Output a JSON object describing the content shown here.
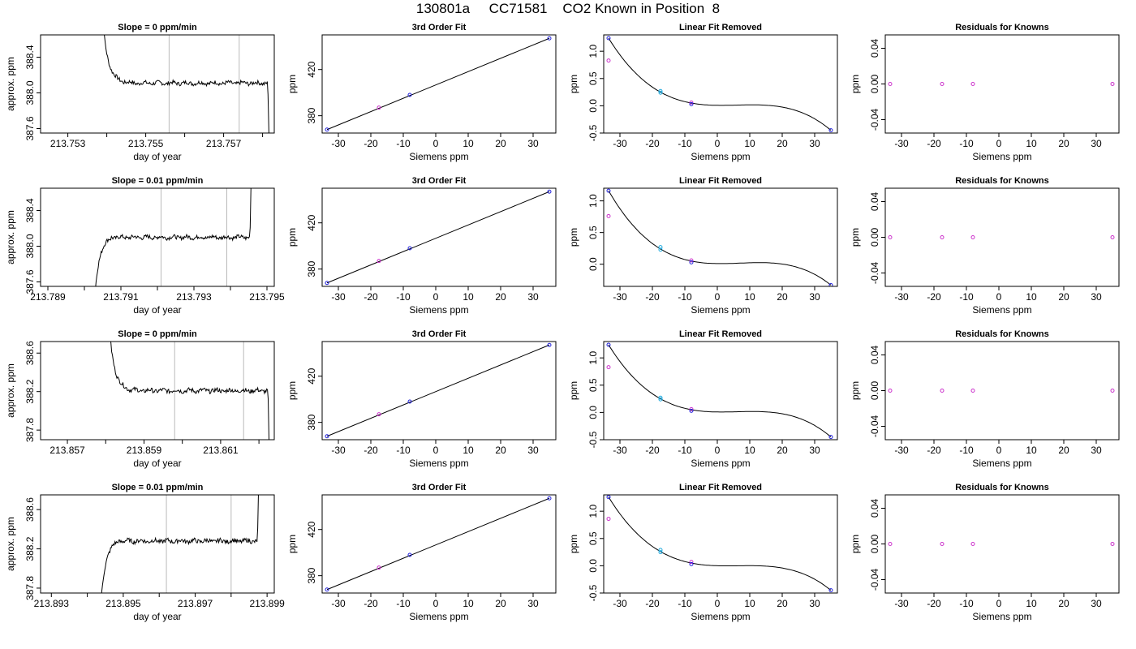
{
  "figure": {
    "title": "130801a     CC71581    CO2 Known in Position  8"
  },
  "colors": {
    "line": "#000000",
    "marker_blue": "#2222dd",
    "marker_cyan": "#22aadd",
    "marker_magenta": "#cc33cc",
    "vline": "#bbbbbb"
  },
  "chart_data": [
    {
      "type": "line",
      "row": 1,
      "title": "Slope =  0  ppm/min",
      "xlabel": "day of year",
      "ylabel": "approx. ppm",
      "xlim": [
        213.7523,
        213.7583
      ],
      "ylim": [
        387.55,
        388.65
      ],
      "xticks": [
        213.753,
        213.755,
        213.757
      ],
      "xtick_labels": [
        "213.753",
        "213.755",
        "213.757"
      ],
      "minor_xticks": [
        213.754,
        213.756,
        213.758
      ],
      "yticks": [
        387.6,
        388.0,
        388.4
      ],
      "ytick_labels": [
        "387.6",
        "388.0",
        "388.4"
      ],
      "vlines": [
        213.7556,
        213.7574
      ],
      "trace": {
        "x0": 213.7538,
        "x1": 213.7582,
        "plateau": 388.11,
        "shape": "decay"
      }
    },
    {
      "type": "line",
      "row": 1,
      "title": "3rd Order Fit",
      "xlabel": "Siemens ppm",
      "ylabel": "ppm",
      "xlim": [
        -35,
        37
      ],
      "ylim": [
        365,
        450
      ],
      "xticks": [
        -30,
        -20,
        -10,
        0,
        10,
        20,
        30
      ],
      "xtick_labels": [
        "-30",
        "-20",
        "-10",
        "0",
        "10",
        "20",
        "30"
      ],
      "yticks": [
        380,
        420
      ],
      "ytick_labels": [
        "380",
        "420"
      ],
      "fit_line": {
        "x": [
          -33.5,
          35.0
        ],
        "y": [
          368,
          447
        ]
      },
      "points": [
        {
          "x": -33.5,
          "y": 368,
          "color": "blue"
        },
        {
          "x": -17.5,
          "y": 387,
          "color": "magenta"
        },
        {
          "x": -8,
          "y": 398,
          "color": "blue"
        },
        {
          "x": 35,
          "y": 447,
          "color": "blue"
        }
      ]
    },
    {
      "type": "scatter",
      "row": 1,
      "title": "Linear Fit Removed",
      "xlabel": "Siemens ppm",
      "ylabel": "ppm",
      "xlim": [
        -35,
        37
      ],
      "ylim": [
        -0.5,
        1.3
      ],
      "xticks": [
        -30,
        -20,
        -10,
        0,
        10,
        20,
        30
      ],
      "xtick_labels": [
        "-30",
        "-20",
        "-10",
        "0",
        "10",
        "20",
        "30"
      ],
      "yticks": [
        -0.5,
        0.0,
        0.5,
        1.0
      ],
      "ytick_labels": [
        "-0.5",
        "0.0",
        "0.5",
        "1.0"
      ],
      "cubic": [
        0.0,
        0.0,
        0.0,
        0.0
      ],
      "curve_fit": {
        "x": [
          -33.5,
          -17.5,
          -8,
          35
        ],
        "y": [
          1.24,
          0.25,
          0.05,
          -0.45
        ]
      },
      "points": [
        {
          "x": -33.5,
          "y": 1.24,
          "color": "blue"
        },
        {
          "x": -33.5,
          "y": 0.83,
          "color": "magenta"
        },
        {
          "x": -17.5,
          "y": 0.27,
          "color": "cyan"
        },
        {
          "x": -17.5,
          "y": 0.24,
          "color": "cyan"
        },
        {
          "x": -8,
          "y": 0.06,
          "color": "magenta"
        },
        {
          "x": -8,
          "y": 0.03,
          "color": "blue"
        },
        {
          "x": 35,
          "y": -0.45,
          "color": "blue"
        }
      ]
    },
    {
      "type": "scatter",
      "row": 1,
      "title": "Residuals for Knowns",
      "xlabel": "Siemens ppm",
      "ylabel": "ppm",
      "xlim": [
        -35,
        37
      ],
      "ylim": [
        -0.055,
        0.055
      ],
      "xticks": [
        -30,
        -20,
        -10,
        0,
        10,
        20,
        30
      ],
      "xtick_labels": [
        "-30",
        "-20",
        "-10",
        "0",
        "10",
        "20",
        "30"
      ],
      "yticks": [
        -0.04,
        0.0,
        0.04
      ],
      "ytick_labels": [
        "-0.04",
        "0.00",
        "0.04"
      ],
      "points": [
        {
          "x": -33.5,
          "y": 0,
          "color": "magenta"
        },
        {
          "x": -17.5,
          "y": 0,
          "color": "magenta"
        },
        {
          "x": -8,
          "y": 0,
          "color": "magenta"
        },
        {
          "x": 35,
          "y": 0,
          "color": "magenta"
        }
      ]
    },
    {
      "type": "line",
      "row": 2,
      "title": "Slope =  0.01  ppm/min",
      "xlabel": "day of year",
      "ylabel": "approx. ppm",
      "xlim": [
        213.7888,
        213.7952
      ],
      "ylim": [
        387.55,
        388.65
      ],
      "xticks": [
        213.789,
        213.791,
        213.793,
        213.795
      ],
      "xtick_labels": [
        "213.789",
        "213.791",
        "213.793",
        "213.795"
      ],
      "minor_xticks": [
        213.79,
        213.792,
        213.794
      ],
      "yticks": [
        387.6,
        388.0,
        388.4
      ],
      "ytick_labels": [
        "387.6",
        "388.0",
        "388.4"
      ],
      "vlines": [
        213.7921,
        213.7939
      ],
      "trace": {
        "x0": 213.7902,
        "x1": 213.7946,
        "plateau": 388.1,
        "shape": "rise"
      }
    },
    {
      "type": "line",
      "row": 2,
      "title": "3rd Order Fit",
      "xlabel": "Siemens ppm",
      "ylabel": "ppm",
      "xlim": [
        -35,
        37
      ],
      "ylim": [
        365,
        450
      ],
      "xticks": [
        -30,
        -20,
        -10,
        0,
        10,
        20,
        30
      ],
      "xtick_labels": [
        "-30",
        "-20",
        "-10",
        "0",
        "10",
        "20",
        "30"
      ],
      "yticks": [
        380,
        420
      ],
      "ytick_labels": [
        "380",
        "420"
      ],
      "fit_line": {
        "x": [
          -33.5,
          35.0
        ],
        "y": [
          368,
          447
        ]
      },
      "points": [
        {
          "x": -33.5,
          "y": 368,
          "color": "blue"
        },
        {
          "x": -17.5,
          "y": 387,
          "color": "magenta"
        },
        {
          "x": -8,
          "y": 398,
          "color": "blue"
        },
        {
          "x": 35,
          "y": 447,
          "color": "blue"
        }
      ]
    },
    {
      "type": "scatter",
      "row": 2,
      "title": "Linear Fit Removed",
      "xlabel": "Siemens ppm",
      "ylabel": "ppm",
      "xlim": [
        -35,
        37
      ],
      "ylim": [
        -0.35,
        1.2
      ],
      "xticks": [
        -30,
        -20,
        -10,
        0,
        10,
        20,
        30
      ],
      "xtick_labels": [
        "-30",
        "-20",
        "-10",
        "0",
        "10",
        "20",
        "30"
      ],
      "yticks": [
        0.0,
        0.5,
        1.0
      ],
      "ytick_labels": [
        "0.0",
        "0.5",
        "1.0"
      ],
      "curve_fit": {
        "x": [
          -33.5,
          -17.5,
          -8,
          35
        ],
        "y": [
          1.16,
          0.24,
          0.05,
          -0.33
        ]
      },
      "points": [
        {
          "x": -33.5,
          "y": 1.16,
          "color": "blue"
        },
        {
          "x": -33.5,
          "y": 0.76,
          "color": "magenta"
        },
        {
          "x": -17.5,
          "y": 0.27,
          "color": "cyan"
        },
        {
          "x": -17.5,
          "y": 0.23,
          "color": "cyan"
        },
        {
          "x": -8,
          "y": 0.06,
          "color": "magenta"
        },
        {
          "x": -8,
          "y": 0.03,
          "color": "blue"
        },
        {
          "x": 35,
          "y": -0.33,
          "color": "blue"
        }
      ]
    },
    {
      "type": "scatter",
      "row": 2,
      "title": "Residuals for Knowns",
      "xlabel": "Siemens ppm",
      "ylabel": "ppm",
      "xlim": [
        -35,
        37
      ],
      "ylim": [
        -0.055,
        0.055
      ],
      "xticks": [
        -30,
        -20,
        -10,
        0,
        10,
        20,
        30
      ],
      "xtick_labels": [
        "-30",
        "-20",
        "-10",
        "0",
        "10",
        "20",
        "30"
      ],
      "yticks": [
        -0.04,
        0.0,
        0.04
      ],
      "ytick_labels": [
        "-0.04",
        "0.00",
        "0.04"
      ],
      "points": [
        {
          "x": -33.5,
          "y": 0,
          "color": "magenta"
        },
        {
          "x": -17.5,
          "y": 0,
          "color": "magenta"
        },
        {
          "x": -8,
          "y": 0,
          "color": "magenta"
        },
        {
          "x": 35,
          "y": 0,
          "color": "magenta"
        }
      ]
    },
    {
      "type": "line",
      "row": 3,
      "title": "Slope =  0  ppm/min",
      "xlabel": "day of year",
      "ylabel": "approx. ppm",
      "xlim": [
        213.8563,
        213.8624
      ],
      "ylim": [
        387.7,
        388.72
      ],
      "xticks": [
        213.857,
        213.859,
        213.861
      ],
      "xtick_labels": [
        "213.857",
        "213.859",
        "213.861"
      ],
      "minor_xticks": [
        213.858,
        213.86,
        213.862
      ],
      "yticks": [
        387.8,
        388.2,
        388.6
      ],
      "ytick_labels": [
        "387.8",
        "388.2",
        "388.6"
      ],
      "vlines": [
        213.8598,
        213.8616
      ],
      "trace": {
        "x0": 213.858,
        "x1": 213.8623,
        "plateau": 388.21,
        "shape": "decay"
      }
    },
    {
      "type": "line",
      "row": 3,
      "title": "3rd Order Fit",
      "xlabel": "Siemens ppm",
      "ylabel": "ppm",
      "xlim": [
        -35,
        37
      ],
      "ylim": [
        365,
        450
      ],
      "xticks": [
        -30,
        -20,
        -10,
        0,
        10,
        20,
        30
      ],
      "xtick_labels": [
        "-30",
        "-20",
        "-10",
        "0",
        "10",
        "20",
        "30"
      ],
      "yticks": [
        380,
        420
      ],
      "ytick_labels": [
        "380",
        "420"
      ],
      "fit_line": {
        "x": [
          -33.5,
          35.0
        ],
        "y": [
          368,
          447
        ]
      },
      "points": [
        {
          "x": -33.5,
          "y": 368,
          "color": "blue"
        },
        {
          "x": -17.5,
          "y": 387,
          "color": "magenta"
        },
        {
          "x": -8,
          "y": 398,
          "color": "blue"
        },
        {
          "x": 35,
          "y": 447,
          "color": "blue"
        }
      ]
    },
    {
      "type": "scatter",
      "row": 3,
      "title": "Linear Fit Removed",
      "xlabel": "Siemens ppm",
      "ylabel": "ppm",
      "xlim": [
        -35,
        37
      ],
      "ylim": [
        -0.5,
        1.3
      ],
      "xticks": [
        -30,
        -20,
        -10,
        0,
        10,
        20,
        30
      ],
      "xtick_labels": [
        "-30",
        "-20",
        "-10",
        "0",
        "10",
        "20",
        "30"
      ],
      "yticks": [
        -0.5,
        0.0,
        0.5,
        1.0
      ],
      "ytick_labels": [
        "-0.5",
        "0.0",
        "0.5",
        "1.0"
      ],
      "curve_fit": {
        "x": [
          -33.5,
          -17.5,
          -8,
          35
        ],
        "y": [
          1.24,
          0.25,
          0.05,
          -0.45
        ]
      },
      "points": [
        {
          "x": -33.5,
          "y": 1.24,
          "color": "blue"
        },
        {
          "x": -33.5,
          "y": 0.83,
          "color": "magenta"
        },
        {
          "x": -17.5,
          "y": 0.27,
          "color": "cyan"
        },
        {
          "x": -17.5,
          "y": 0.24,
          "color": "cyan"
        },
        {
          "x": -8,
          "y": 0.06,
          "color": "magenta"
        },
        {
          "x": -8,
          "y": 0.03,
          "color": "blue"
        },
        {
          "x": 35,
          "y": -0.45,
          "color": "blue"
        }
      ]
    },
    {
      "type": "scatter",
      "row": 3,
      "title": "Residuals for Knowns",
      "xlabel": "Siemens ppm",
      "ylabel": "ppm",
      "xlim": [
        -35,
        37
      ],
      "ylim": [
        -0.055,
        0.055
      ],
      "xticks": [
        -30,
        -20,
        -10,
        0,
        10,
        20,
        30
      ],
      "xtick_labels": [
        "-30",
        "-20",
        "-10",
        "0",
        "10",
        "20",
        "30"
      ],
      "yticks": [
        -0.04,
        0.0,
        0.04
      ],
      "ytick_labels": [
        "-0.04",
        "0.00",
        "0.04"
      ],
      "points": [
        {
          "x": -33.5,
          "y": 0,
          "color": "magenta"
        },
        {
          "x": -17.5,
          "y": 0,
          "color": "magenta"
        },
        {
          "x": -8,
          "y": 0,
          "color": "magenta"
        },
        {
          "x": 35,
          "y": 0,
          "color": "magenta"
        }
      ]
    },
    {
      "type": "line",
      "row": 4,
      "title": "Slope =  0.01  ppm/min",
      "xlabel": "day of year",
      "ylabel": "approx. ppm",
      "xlim": [
        213.8927,
        213.8992
      ],
      "ylim": [
        387.75,
        388.75
      ],
      "xticks": [
        213.893,
        213.895,
        213.897,
        213.899
      ],
      "xtick_labels": [
        "213.893",
        "213.895",
        "213.897",
        "213.899"
      ],
      "minor_xticks": [
        213.894,
        213.896,
        213.898
      ],
      "yticks": [
        387.8,
        388.2,
        388.6
      ],
      "ytick_labels": [
        "387.8",
        "388.2",
        "388.6"
      ],
      "vlines": [
        213.8962,
        213.898
      ],
      "trace": {
        "x0": 213.8943,
        "x1": 213.8988,
        "plateau": 388.28,
        "shape": "rise"
      }
    },
    {
      "type": "line",
      "row": 4,
      "title": "3rd Order Fit",
      "xlabel": "Siemens ppm",
      "ylabel": "ppm",
      "xlim": [
        -35,
        37
      ],
      "ylim": [
        365,
        450
      ],
      "xticks": [
        -30,
        -20,
        -10,
        0,
        10,
        20,
        30
      ],
      "xtick_labels": [
        "-30",
        "-20",
        "-10",
        "0",
        "10",
        "20",
        "30"
      ],
      "yticks": [
        380,
        420
      ],
      "ytick_labels": [
        "380",
        "420"
      ],
      "fit_line": {
        "x": [
          -33.5,
          35.0
        ],
        "y": [
          368,
          447
        ]
      },
      "points": [
        {
          "x": -33.5,
          "y": 368,
          "color": "blue"
        },
        {
          "x": -17.5,
          "y": 387,
          "color": "magenta"
        },
        {
          "x": -8,
          "y": 398,
          "color": "blue"
        },
        {
          "x": 35,
          "y": 447,
          "color": "blue"
        }
      ]
    },
    {
      "type": "scatter",
      "row": 4,
      "title": "Linear Fit Removed",
      "xlabel": "Siemens ppm",
      "ylabel": "ppm",
      "xlim": [
        -35,
        37
      ],
      "ylim": [
        -0.5,
        1.3
      ],
      "xticks": [
        -30,
        -20,
        -10,
        0,
        10,
        20,
        30
      ],
      "xtick_labels": [
        "-30",
        "-20",
        "-10",
        "0",
        "10",
        "20",
        "30"
      ],
      "yticks": [
        -0.5,
        0.0,
        0.5,
        1.0
      ],
      "ytick_labels": [
        "-0.5",
        "0.0",
        "0.5",
        "1.0"
      ],
      "curve_fit": {
        "x": [
          -33.5,
          -17.5,
          -8,
          35
        ],
        "y": [
          1.26,
          0.26,
          0.05,
          -0.45
        ]
      },
      "points": [
        {
          "x": -33.5,
          "y": 1.26,
          "color": "blue"
        },
        {
          "x": -33.5,
          "y": 0.86,
          "color": "magenta"
        },
        {
          "x": -17.5,
          "y": 0.29,
          "color": "cyan"
        },
        {
          "x": -17.5,
          "y": 0.25,
          "color": "cyan"
        },
        {
          "x": -8,
          "y": 0.07,
          "color": "magenta"
        },
        {
          "x": -8,
          "y": 0.03,
          "color": "blue"
        },
        {
          "x": 35,
          "y": -0.45,
          "color": "blue"
        }
      ]
    },
    {
      "type": "scatter",
      "row": 4,
      "title": "Residuals for Knowns",
      "xlabel": "Siemens ppm",
      "ylabel": "ppm",
      "xlim": [
        -35,
        37
      ],
      "ylim": [
        -0.055,
        0.055
      ],
      "xticks": [
        -30,
        -20,
        -10,
        0,
        10,
        20,
        30
      ],
      "xtick_labels": [
        "-30",
        "-20",
        "-10",
        "0",
        "10",
        "20",
        "30"
      ],
      "yticks": [
        -0.04,
        0.0,
        0.04
      ],
      "ytick_labels": [
        "-0.04",
        "0.00",
        "0.04"
      ],
      "points": [
        {
          "x": -33.5,
          "y": 0,
          "color": "magenta"
        },
        {
          "x": -17.5,
          "y": 0,
          "color": "magenta"
        },
        {
          "x": -8,
          "y": 0,
          "color": "magenta"
        },
        {
          "x": 35,
          "y": 0,
          "color": "magenta"
        }
      ]
    }
  ]
}
